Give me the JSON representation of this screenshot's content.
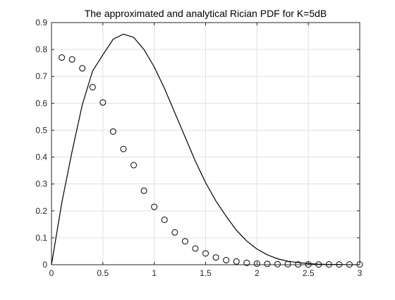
{
  "chart_data": {
    "type": "line",
    "title": "The approximated and analytical Rician PDF for K=5dB",
    "xlabel": "",
    "ylabel": "",
    "xlim": [
      0,
      3
    ],
    "ylim": [
      0,
      0.9
    ],
    "xticks": [
      0,
      0.5,
      1,
      1.5,
      2,
      2.5,
      3
    ],
    "xtick_labels": [
      "0",
      "0.5",
      "1",
      "1.5",
      "2",
      "2.5",
      "3"
    ],
    "yticks": [
      0,
      0.1,
      0.2,
      0.3,
      0.4,
      0.5,
      0.6,
      0.7,
      0.8,
      0.9
    ],
    "ytick_labels": [
      "0",
      "0.1",
      "0.2",
      "0.3",
      "0.4",
      "0.5",
      "0.6",
      "0.7",
      "0.8",
      "0.9"
    ],
    "grid": true,
    "legend": "none",
    "colors": {
      "line": "#000000",
      "markers": "#000000",
      "grid": "#e0e0e0",
      "axes": "#262626"
    },
    "series": [
      {
        "style": "solid-line",
        "x": [
          0,
          0.1,
          0.2,
          0.3,
          0.4,
          0.5,
          0.6,
          0.7,
          0.8,
          0.9,
          1.0,
          1.1,
          1.2,
          1.3,
          1.4,
          1.5,
          1.6,
          1.7,
          1.8,
          1.9,
          2.0,
          2.1,
          2.2,
          2.3,
          2.4,
          2.5,
          2.6,
          2.7,
          2.8,
          2.9,
          3.0
        ],
        "y": [
          0,
          0.23,
          0.42,
          0.595,
          0.72,
          0.78,
          0.838,
          0.857,
          0.845,
          0.8,
          0.735,
          0.655,
          0.565,
          0.475,
          0.385,
          0.305,
          0.237,
          0.18,
          0.128,
          0.088,
          0.058,
          0.037,
          0.022,
          0.013,
          0.008,
          0.004,
          0.002,
          0.001,
          0.001,
          0.0,
          0.0
        ]
      },
      {
        "style": "circle-markers",
        "x": [
          0.1,
          0.2,
          0.3,
          0.4,
          0.5,
          0.6,
          0.7,
          0.8,
          0.9,
          1.0,
          1.1,
          1.2,
          1.3,
          1.4,
          1.5,
          1.6,
          1.7,
          1.8,
          1.9,
          2.0,
          2.1,
          2.2,
          2.3,
          2.4,
          2.5,
          2.6,
          2.7,
          2.8,
          2.9,
          3.0
        ],
        "y": [
          0.77,
          0.763,
          0.73,
          0.66,
          0.603,
          0.495,
          0.43,
          0.37,
          0.275,
          0.215,
          0.167,
          0.12,
          0.087,
          0.06,
          0.042,
          0.027,
          0.017,
          0.012,
          0.007,
          0.004,
          0.003,
          0.002,
          0.002,
          0.001,
          0.001,
          0.001,
          0.001,
          0.001,
          0.001,
          0.001
        ]
      }
    ]
  }
}
